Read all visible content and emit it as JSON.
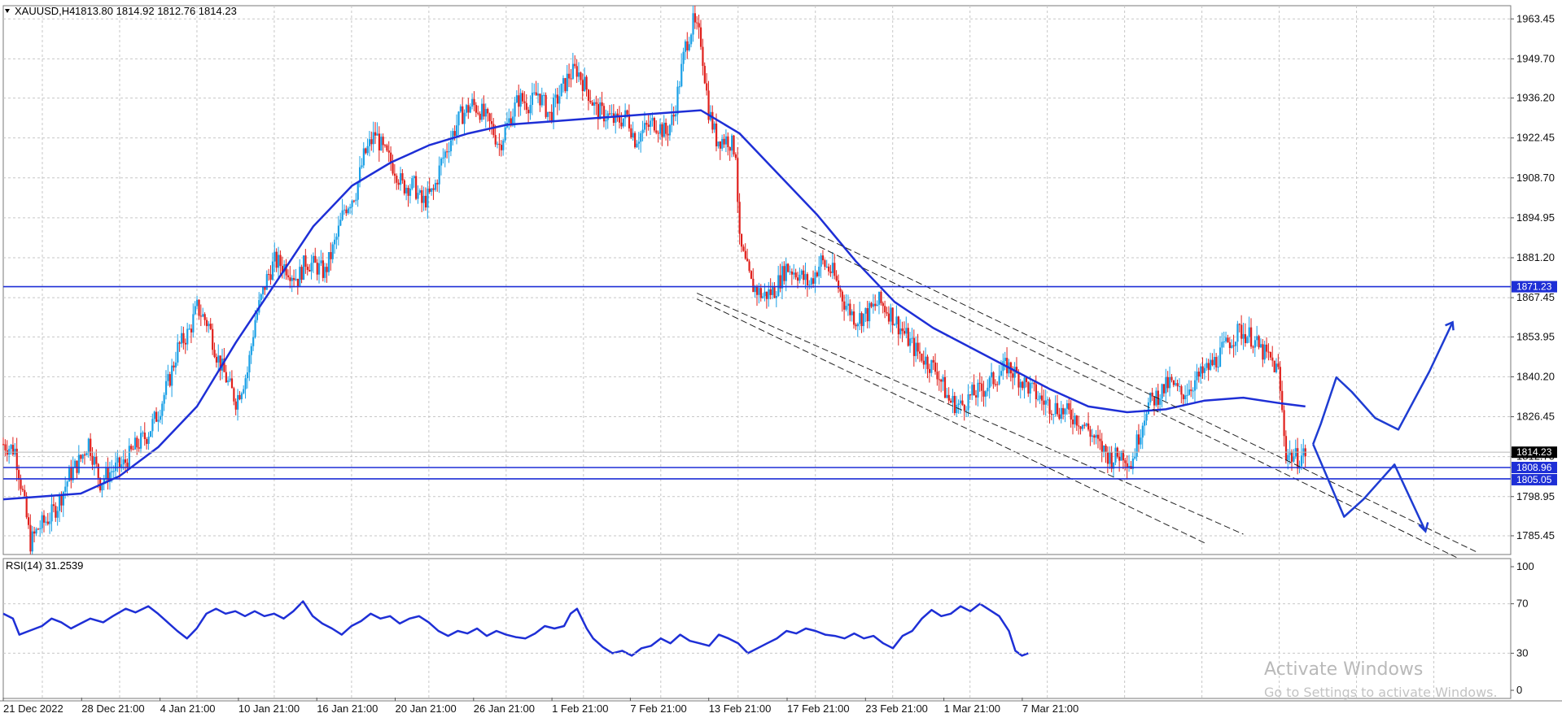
{
  "header": {
    "symbol": "XAUUSD,H4",
    "ohlc": "1813.80 1814.92 1812.76 1814.23"
  },
  "rsi_header": "RSI(14) 31.2539",
  "watermark": {
    "title": "Activate Windows",
    "subtitle": "Go to Settings to activate Windows."
  },
  "colors": {
    "bull": "#1aa0e6",
    "bear": "#e0201c",
    "ma": "#1e2fd6",
    "hline": "#1e2fd6",
    "grid": "#c7c7c7",
    "drawing": "#1e3cd2",
    "channel": "#222222"
  },
  "chart_data": [
    {
      "type": "candlestick",
      "symbol": "XAUUSD",
      "timeframe": "H4",
      "ylim": [
        1779,
        1968
      ],
      "y_ticks": [
        "1963.45",
        "1949.70",
        "1936.20",
        "1922.45",
        "1908.70",
        "1894.95",
        "1881.20",
        "1867.45",
        "1853.95",
        "1840.20",
        "1826.45",
        "1812.70",
        "1798.95",
        "1785.45"
      ],
      "x_ticks": [
        "21 Dec 2022",
        "28 Dec 21:00",
        "4 Jan 21:00",
        "10 Jan 21:00",
        "16 Jan 21:00",
        "20 Jan 21:00",
        "26 Jan 21:00",
        "1 Feb 21:00",
        "7 Feb 21:00",
        "13 Feb 21:00",
        "17 Feb 21:00",
        "23 Feb 21:00",
        "1 Mar 21:00",
        "7 Mar 21:00"
      ],
      "price_tags": {
        "last": "1814.23",
        "h1": "1871.23",
        "h2": "1808.96",
        "h3": "1805.05"
      },
      "horizontal_lines": [
        1871.23,
        1808.96,
        1805.05
      ],
      "close_path": [
        [
          0,
          1817
        ],
        [
          6,
          1815
        ],
        [
          10,
          1800
        ],
        [
          14,
          1783
        ],
        [
          18,
          1788
        ],
        [
          24,
          1792
        ],
        [
          28,
          1796
        ],
        [
          34,
          1806
        ],
        [
          40,
          1812
        ],
        [
          44,
          1818
        ],
        [
          50,
          1804
        ],
        [
          56,
          1808
        ],
        [
          62,
          1810
        ],
        [
          68,
          1816
        ],
        [
          74,
          1820
        ],
        [
          80,
          1828
        ],
        [
          86,
          1840
        ],
        [
          90,
          1850
        ],
        [
          96,
          1856
        ],
        [
          100,
          1864
        ],
        [
          106,
          1858
        ],
        [
          110,
          1848
        ],
        [
          116,
          1838
        ],
        [
          120,
          1832
        ],
        [
          126,
          1842
        ],
        [
          130,
          1860
        ],
        [
          136,
          1874
        ],
        [
          140,
          1880
        ],
        [
          146,
          1878
        ],
        [
          152,
          1874
        ],
        [
          156,
          1880
        ],
        [
          162,
          1878
        ],
        [
          166,
          1876
        ],
        [
          172,
          1888
        ],
        [
          176,
          1898
        ],
        [
          182,
          1904
        ],
        [
          186,
          1916
        ],
        [
          192,
          1924
        ],
        [
          196,
          1918
        ],
        [
          202,
          1912
        ],
        [
          206,
          1906
        ],
        [
          212,
          1906
        ],
        [
          216,
          1900
        ],
        [
          222,
          1904
        ],
        [
          226,
          1914
        ],
        [
          232,
          1924
        ],
        [
          236,
          1930
        ],
        [
          242,
          1934
        ],
        [
          246,
          1932
        ],
        [
          252,
          1926
        ],
        [
          256,
          1920
        ],
        [
          262,
          1930
        ],
        [
          266,
          1936
        ],
        [
          272,
          1934
        ],
        [
          276,
          1938
        ],
        [
          282,
          1930
        ],
        [
          286,
          1936
        ],
        [
          292,
          1944
        ],
        [
          296,
          1946
        ],
        [
          302,
          1938
        ],
        [
          306,
          1932
        ],
        [
          312,
          1930
        ],
        [
          316,
          1928
        ],
        [
          322,
          1930
        ],
        [
          326,
          1922
        ],
        [
          332,
          1926
        ],
        [
          336,
          1928
        ],
        [
          342,
          1924
        ],
        [
          346,
          1930
        ],
        [
          352,
          1954
        ],
        [
          356,
          1962
        ],
        [
          360,
          1956
        ],
        [
          364,
          1932
        ],
        [
          368,
          1922
        ],
        [
          374,
          1922
        ],
        [
          378,
          1918
        ],
        [
          380,
          1886
        ],
        [
          386,
          1872
        ],
        [
          392,
          1868
        ],
        [
          398,
          1870
        ],
        [
          404,
          1878
        ],
        [
          410,
          1876
        ],
        [
          416,
          1872
        ],
        [
          422,
          1880
        ],
        [
          428,
          1876
        ],
        [
          434,
          1866
        ],
        [
          440,
          1860
        ],
        [
          446,
          1862
        ],
        [
          452,
          1866
        ],
        [
          458,
          1862
        ],
        [
          464,
          1856
        ],
        [
          470,
          1850
        ],
        [
          476,
          1846
        ],
        [
          482,
          1842
        ],
        [
          488,
          1832
        ],
        [
          494,
          1830
        ],
        [
          500,
          1834
        ],
        [
          506,
          1836
        ],
        [
          512,
          1840
        ],
        [
          518,
          1844
        ],
        [
          524,
          1840
        ],
        [
          530,
          1836
        ],
        [
          536,
          1832
        ],
        [
          542,
          1830
        ],
        [
          548,
          1828
        ],
        [
          554,
          1826
        ],
        [
          560,
          1822
        ],
        [
          566,
          1816
        ],
        [
          572,
          1812
        ],
        [
          578,
          1814
        ],
        [
          582,
          1810
        ],
        [
          586,
          1820
        ],
        [
          590,
          1830
        ],
        [
          596,
          1834
        ],
        [
          602,
          1838
        ],
        [
          608,
          1834
        ],
        [
          614,
          1838
        ],
        [
          620,
          1842
        ],
        [
          626,
          1846
        ],
        [
          632,
          1852
        ],
        [
          638,
          1856
        ],
        [
          644,
          1854
        ],
        [
          648,
          1850
        ],
        [
          654,
          1846
        ],
        [
          658,
          1842
        ],
        [
          662,
          1814
        ],
        [
          668,
          1812
        ],
        [
          672,
          1814
        ]
      ],
      "moving_average": [
        [
          0,
          1798
        ],
        [
          20,
          1799
        ],
        [
          40,
          1800
        ],
        [
          60,
          1806
        ],
        [
          80,
          1816
        ],
        [
          100,
          1830
        ],
        [
          120,
          1852
        ],
        [
          140,
          1872
        ],
        [
          160,
          1892
        ],
        [
          180,
          1906
        ],
        [
          200,
          1914
        ],
        [
          220,
          1920
        ],
        [
          240,
          1924
        ],
        [
          260,
          1927
        ],
        [
          280,
          1928
        ],
        [
          300,
          1929
        ],
        [
          320,
          1930
        ],
        [
          340,
          1931
        ],
        [
          360,
          1932
        ],
        [
          380,
          1924
        ],
        [
          400,
          1910
        ],
        [
          420,
          1896
        ],
        [
          440,
          1880
        ],
        [
          460,
          1866
        ],
        [
          480,
          1857
        ],
        [
          500,
          1850
        ],
        [
          520,
          1843
        ],
        [
          540,
          1836
        ],
        [
          560,
          1830
        ],
        [
          580,
          1828
        ],
        [
          600,
          1829
        ],
        [
          620,
          1832
        ],
        [
          640,
          1833
        ],
        [
          660,
          1831
        ],
        [
          672,
          1830
        ]
      ],
      "channel_lines": [
        [
          [
            358,
            1869
          ],
          [
            640,
            1786
          ]
        ],
        [
          [
            358,
            1867
          ],
          [
            620,
            1783
          ]
        ],
        [
          [
            412,
            1892
          ],
          [
            760,
            1780
          ]
        ],
        [
          [
            412,
            1888
          ],
          [
            750,
            1778
          ]
        ]
      ],
      "projection_up": [
        [
          676,
          1817
        ],
        [
          680,
          1824
        ],
        [
          688,
          1840
        ],
        [
          696,
          1835
        ],
        [
          708,
          1826
        ],
        [
          720,
          1822
        ],
        [
          736,
          1842
        ],
        [
          748,
          1859
        ]
      ],
      "projection_down": [
        [
          676,
          1817
        ],
        [
          692,
          1792
        ],
        [
          702,
          1798
        ],
        [
          718,
          1810
        ],
        [
          734,
          1787
        ]
      ]
    },
    {
      "type": "line",
      "name": "RSI(14)",
      "ylim": [
        0,
        100
      ],
      "y_ticks": [
        "100",
        "70",
        "30",
        "0"
      ],
      "values": [
        [
          0,
          62
        ],
        [
          6,
          58
        ],
        [
          10,
          45
        ],
        [
          16,
          48
        ],
        [
          24,
          52
        ],
        [
          30,
          58
        ],
        [
          36,
          55
        ],
        [
          42,
          50
        ],
        [
          48,
          54
        ],
        [
          54,
          58
        ],
        [
          62,
          55
        ],
        [
          68,
          60
        ],
        [
          76,
          66
        ],
        [
          82,
          63
        ],
        [
          90,
          68
        ],
        [
          96,
          62
        ],
        [
          102,
          55
        ],
        [
          108,
          48
        ],
        [
          114,
          42
        ],
        [
          120,
          50
        ],
        [
          126,
          62
        ],
        [
          132,
          66
        ],
        [
          138,
          62
        ],
        [
          144,
          64
        ],
        [
          150,
          60
        ],
        [
          156,
          64
        ],
        [
          162,
          60
        ],
        [
          168,
          62
        ],
        [
          174,
          58
        ],
        [
          180,
          64
        ],
        [
          186,
          72
        ],
        [
          192,
          60
        ],
        [
          198,
          54
        ],
        [
          204,
          50
        ],
        [
          210,
          45
        ],
        [
          216,
          52
        ],
        [
          222,
          56
        ],
        [
          228,
          62
        ],
        [
          234,
          58
        ],
        [
          240,
          60
        ],
        [
          246,
          54
        ],
        [
          252,
          58
        ],
        [
          258,
          60
        ],
        [
          264,
          55
        ],
        [
          270,
          48
        ],
        [
          276,
          44
        ],
        [
          282,
          48
        ],
        [
          288,
          46
        ],
        [
          294,
          50
        ],
        [
          300,
          44
        ],
        [
          306,
          48
        ],
        [
          312,
          45
        ],
        [
          318,
          43
        ],
        [
          324,
          42
        ],
        [
          330,
          46
        ],
        [
          336,
          52
        ],
        [
          342,
          50
        ],
        [
          348,
          52
        ],
        [
          352,
          62
        ],
        [
          356,
          66
        ],
        [
          362,
          50
        ],
        [
          366,
          42
        ],
        [
          372,
          35
        ],
        [
          378,
          30
        ],
        [
          384,
          32
        ],
        [
          390,
          28
        ],
        [
          396,
          34
        ],
        [
          402,
          36
        ],
        [
          408,
          42
        ],
        [
          414,
          38
        ],
        [
          420,
          45
        ],
        [
          426,
          40
        ],
        [
          432,
          38
        ],
        [
          438,
          36
        ],
        [
          444,
          45
        ],
        [
          450,
          42
        ],
        [
          456,
          38
        ],
        [
          462,
          30
        ],
        [
          468,
          34
        ],
        [
          474,
          38
        ],
        [
          480,
          42
        ],
        [
          486,
          48
        ],
        [
          492,
          46
        ],
        [
          498,
          50
        ],
        [
          504,
          48
        ],
        [
          510,
          45
        ],
        [
          516,
          44
        ],
        [
          522,
          42
        ],
        [
          528,
          46
        ],
        [
          534,
          42
        ],
        [
          540,
          44
        ],
        [
          546,
          38
        ],
        [
          552,
          34
        ],
        [
          558,
          44
        ],
        [
          564,
          48
        ],
        [
          570,
          58
        ],
        [
          576,
          65
        ],
        [
          582,
          60
        ],
        [
          588,
          62
        ],
        [
          594,
          68
        ],
        [
          600,
          64
        ],
        [
          606,
          70
        ],
        [
          612,
          65
        ],
        [
          618,
          60
        ],
        [
          624,
          48
        ],
        [
          628,
          32
        ],
        [
          632,
          28
        ],
        [
          636,
          30
        ]
      ]
    }
  ]
}
